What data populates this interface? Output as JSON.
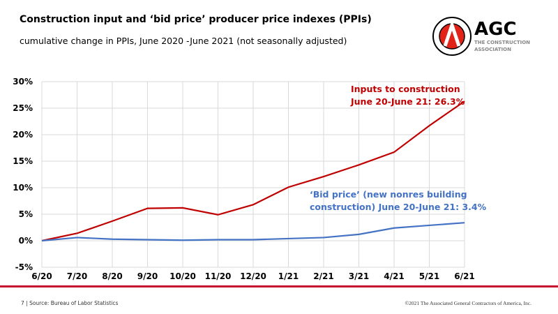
{
  "header": {
    "title": "Construction input and ‘bid price’ producer price indexes (PPIs)",
    "subtitle": "cumulative change in PPIs, June 2020  -June 2021  (not seasonally adjusted)"
  },
  "logo": {
    "text": "AGC",
    "tagline1": "THE CONSTRUCTION",
    "tagline2": "ASSOCIATION",
    "seal_text": "ASSOCIATED GENERAL CONTRACTORS OF AMERICA"
  },
  "footer": {
    "page": "7",
    "source": "Source: Bureau of Labor Statistics",
    "copyright": "©2021 The Associated General Contractors of America, Inc."
  },
  "colors": {
    "inputs": "#c00000",
    "bid": "#4472c4",
    "accent": "#c8102e"
  },
  "chart_data": {
    "type": "line",
    "categories": [
      "6/20",
      "7/20",
      "8/20",
      "9/20",
      "10/20",
      "11/20",
      "12/20",
      "1/21",
      "2/21",
      "3/21",
      "4/21",
      "5/21",
      "6/21"
    ],
    "ylim": [
      -5,
      30
    ],
    "yticks": [
      "-5%",
      "0%",
      "5%",
      "10%",
      "15%",
      "20%",
      "25%",
      "30%"
    ],
    "grid": true,
    "series": [
      {
        "name": "Inputs to construction",
        "values": [
          0,
          1.4,
          3.7,
          6.1,
          6.2,
          4.9,
          6.8,
          10.1,
          12.1,
          14.3,
          16.7,
          21.7,
          26.3
        ]
      },
      {
        "name": "‘Bid price’ (new nonres building construction)",
        "values": [
          0,
          0.6,
          0.3,
          0.2,
          0.1,
          0.2,
          0.2,
          0.4,
          0.6,
          1.2,
          2.4,
          2.9,
          3.4
        ]
      }
    ],
    "annotations": [
      {
        "line1": "Inputs to construction",
        "line2": "June 20-June 21: 26.3%"
      },
      {
        "line1": "‘Bid price’ (new nonres building",
        "line2": "construction) June 20-June 21: 3.4%"
      }
    ]
  }
}
